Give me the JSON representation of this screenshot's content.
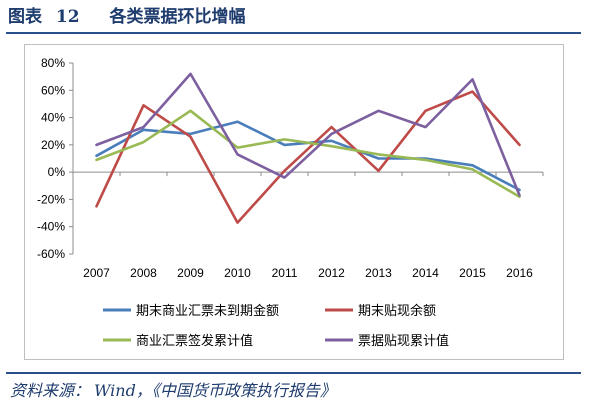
{
  "title": {
    "label": "图表",
    "number": "12",
    "text": "各类票据环比增幅"
  },
  "source": {
    "label": "资料来源：",
    "text": "Wind，《中国货币政策执行报告》"
  },
  "chart_data": {
    "type": "line",
    "categories": [
      "2007",
      "2008",
      "2009",
      "2010",
      "2011",
      "2012",
      "2013",
      "2014",
      "2015",
      "2016"
    ],
    "ylim": [
      -60,
      80
    ],
    "yticks": [
      80,
      60,
      40,
      20,
      0,
      -20,
      -40,
      -60
    ],
    "ytick_labels": [
      "80%",
      "60%",
      "40%",
      "20%",
      "0%",
      "-20%",
      "-40%",
      "-60%"
    ],
    "grid": false,
    "legend": "bottom",
    "series": [
      {
        "name": "期末商业汇票未到期金额",
        "color": "#4a7ebb",
        "values": [
          12,
          31,
          28,
          37,
          20,
          23,
          10,
          10,
          5,
          -13
        ]
      },
      {
        "name": "期末贴现余额",
        "color": "#be4b48",
        "values": [
          -25,
          49,
          26,
          -37,
          1,
          33,
          1,
          45,
          59,
          20
        ]
      },
      {
        "name": "商业汇票签发累计值",
        "color": "#98b954",
        "values": [
          9,
          22,
          45,
          18,
          24,
          19,
          13,
          9,
          2,
          -18
        ]
      },
      {
        "name": "票据贴现累计值",
        "color": "#7d5fa0",
        "values": [
          20,
          33,
          72,
          13,
          -4,
          28,
          45,
          33,
          68,
          -17
        ]
      }
    ]
  }
}
